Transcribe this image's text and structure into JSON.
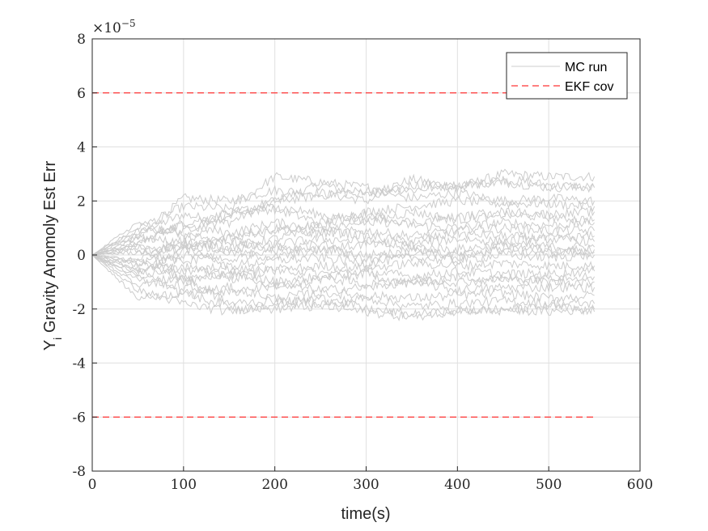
{
  "chart_data": {
    "type": "line",
    "xlabel": "time(s)",
    "ylabel_main": "Y",
    "ylabel_sub": "i",
    "ylabel_rest": " Gravity Anomoly Est Err",
    "exponent_base": "×10",
    "exponent_power": "−5",
    "xlim": [
      0,
      600
    ],
    "ylim": [
      -8,
      8
    ],
    "x_ticks": [
      0,
      100,
      200,
      300,
      400,
      500,
      600
    ],
    "y_ticks": [
      -8,
      -6,
      -4,
      -2,
      0,
      2,
      4,
      6,
      8
    ],
    "x_tick_labels": [
      "0",
      "100",
      "200",
      "300",
      "400",
      "500",
      "600"
    ],
    "y_tick_labels": [
      "-8",
      "-6",
      "-4",
      "-2",
      "0",
      "2",
      "4",
      "6",
      "8"
    ],
    "grid": true,
    "legend_position": "top-right",
    "legend": [
      {
        "label": "MC run",
        "color": "#cccccc",
        "style": "solid"
      },
      {
        "label": "EKF cov",
        "color": "#ff3333",
        "style": "dashed"
      }
    ],
    "series": [
      {
        "name": "MC run",
        "color": "#cccccc",
        "x": [
          0,
          50,
          100,
          150,
          200,
          250,
          300,
          350,
          400,
          450,
          500,
          550
        ],
        "runs": [
          [
            0,
            0.8,
            1.5,
            1.2,
            2.0,
            2.6,
            2.2,
            2.8,
            2.5,
            3.0,
            2.9,
            2.9
          ],
          [
            0,
            0.6,
            2.1,
            2.0,
            2.4,
            2.3,
            2.0,
            2.6,
            2.5,
            2.8,
            2.6,
            2.5
          ],
          [
            0,
            1.0,
            1.8,
            1.7,
            2.9,
            2.7,
            2.5,
            2.4,
            2.6,
            2.7,
            2.5,
            2.5
          ],
          [
            0,
            0.4,
            1.2,
            1.5,
            2.0,
            2.2,
            2.4,
            2.1,
            2.3,
            2.0,
            2.1,
            2.0
          ],
          [
            0,
            0.9,
            0.9,
            1.6,
            1.7,
            1.2,
            1.6,
            1.8,
            2.0,
            1.9,
            1.9,
            1.8
          ],
          [
            0,
            -0.2,
            0.6,
            1.4,
            1.8,
            1.5,
            1.2,
            1.6,
            1.3,
            1.5,
            1.4,
            1.3
          ],
          [
            0,
            0.5,
            1.1,
            0.8,
            1.2,
            1.0,
            1.3,
            1.1,
            1.0,
            1.2,
            1.1,
            1.2
          ],
          [
            0,
            0.3,
            0.2,
            0.7,
            1.0,
            0.8,
            0.9,
            0.7,
            0.9,
            1.0,
            0.9,
            0.9
          ],
          [
            0,
            -0.4,
            0.5,
            0.3,
            0.6,
            0.9,
            0.7,
            0.5,
            0.8,
            0.7,
            0.6,
            0.7
          ],
          [
            0,
            0.2,
            -0.3,
            0.2,
            0.4,
            0.6,
            0.5,
            0.4,
            0.6,
            0.5,
            0.6,
            0.5
          ],
          [
            0,
            -0.6,
            0.0,
            -0.2,
            0.3,
            0.2,
            0.4,
            0.3,
            0.2,
            0.4,
            0.3,
            0.3
          ],
          [
            0,
            0.7,
            0.4,
            0.1,
            -0.1,
            0.2,
            0.0,
            0.1,
            0.0,
            0.2,
            0.1,
            0.1
          ],
          [
            0,
            -0.3,
            -0.6,
            -0.4,
            -0.2,
            -0.1,
            -0.3,
            -0.1,
            -0.2,
            0.0,
            -0.1,
            0.0
          ],
          [
            0,
            0.1,
            0.3,
            -0.5,
            -0.6,
            -0.4,
            -0.5,
            -0.3,
            -0.4,
            -0.3,
            -0.4,
            -0.4
          ],
          [
            0,
            -0.8,
            -0.4,
            -0.9,
            -0.5,
            -0.7,
            -0.6,
            -0.8,
            -0.6,
            -0.7,
            -0.7,
            -0.6
          ],
          [
            0,
            -0.2,
            -0.9,
            -0.6,
            -1.0,
            -0.8,
            -1.1,
            -0.9,
            -1.0,
            -0.9,
            -1.0,
            -1.0
          ],
          [
            0,
            -0.9,
            -1.2,
            -1.4,
            -1.1,
            -1.3,
            -1.2,
            -1.0,
            -1.3,
            -1.2,
            -1.2,
            -1.2
          ],
          [
            0,
            -0.5,
            -1.5,
            -1.2,
            -1.6,
            -1.4,
            -1.5,
            -1.6,
            -1.5,
            -1.4,
            -1.6,
            -1.5
          ],
          [
            0,
            -1.1,
            -0.8,
            -1.8,
            -1.7,
            -1.8,
            -1.6,
            -1.9,
            -1.8,
            -1.7,
            -1.8,
            -1.8
          ],
          [
            0,
            -1.3,
            -1.8,
            -2.1,
            -1.8,
            -1.6,
            -2.0,
            -2.2,
            -2.1,
            -2.0,
            -2.1,
            -2.0
          ],
          [
            0,
            -1.6,
            -1.4,
            -1.9,
            -2.0,
            -1.9,
            -2.1,
            -2.3,
            -2.0,
            -2.1,
            -1.9,
            -2.1
          ],
          [
            0,
            1.2,
            0.7,
            0.5,
            0.9,
            1.1,
            1.5,
            1.2,
            1.4,
            1.6,
            1.5,
            1.6
          ],
          [
            0,
            -0.7,
            0.2,
            0.6,
            0.1,
            0.4,
            -0.2,
            0.2,
            -0.1,
            0.3,
            0.2,
            0.2
          ],
          [
            0,
            0.4,
            -1.0,
            -0.7,
            -1.2,
            -0.9,
            -0.7,
            -1.1,
            -0.8,
            -0.9,
            -0.8,
            -0.8
          ]
        ]
      },
      {
        "name": "EKF cov",
        "color": "#ff3333",
        "x": [
          0,
          550
        ],
        "upper": [
          6,
          6
        ],
        "lower": [
          -6,
          -6
        ]
      }
    ]
  }
}
